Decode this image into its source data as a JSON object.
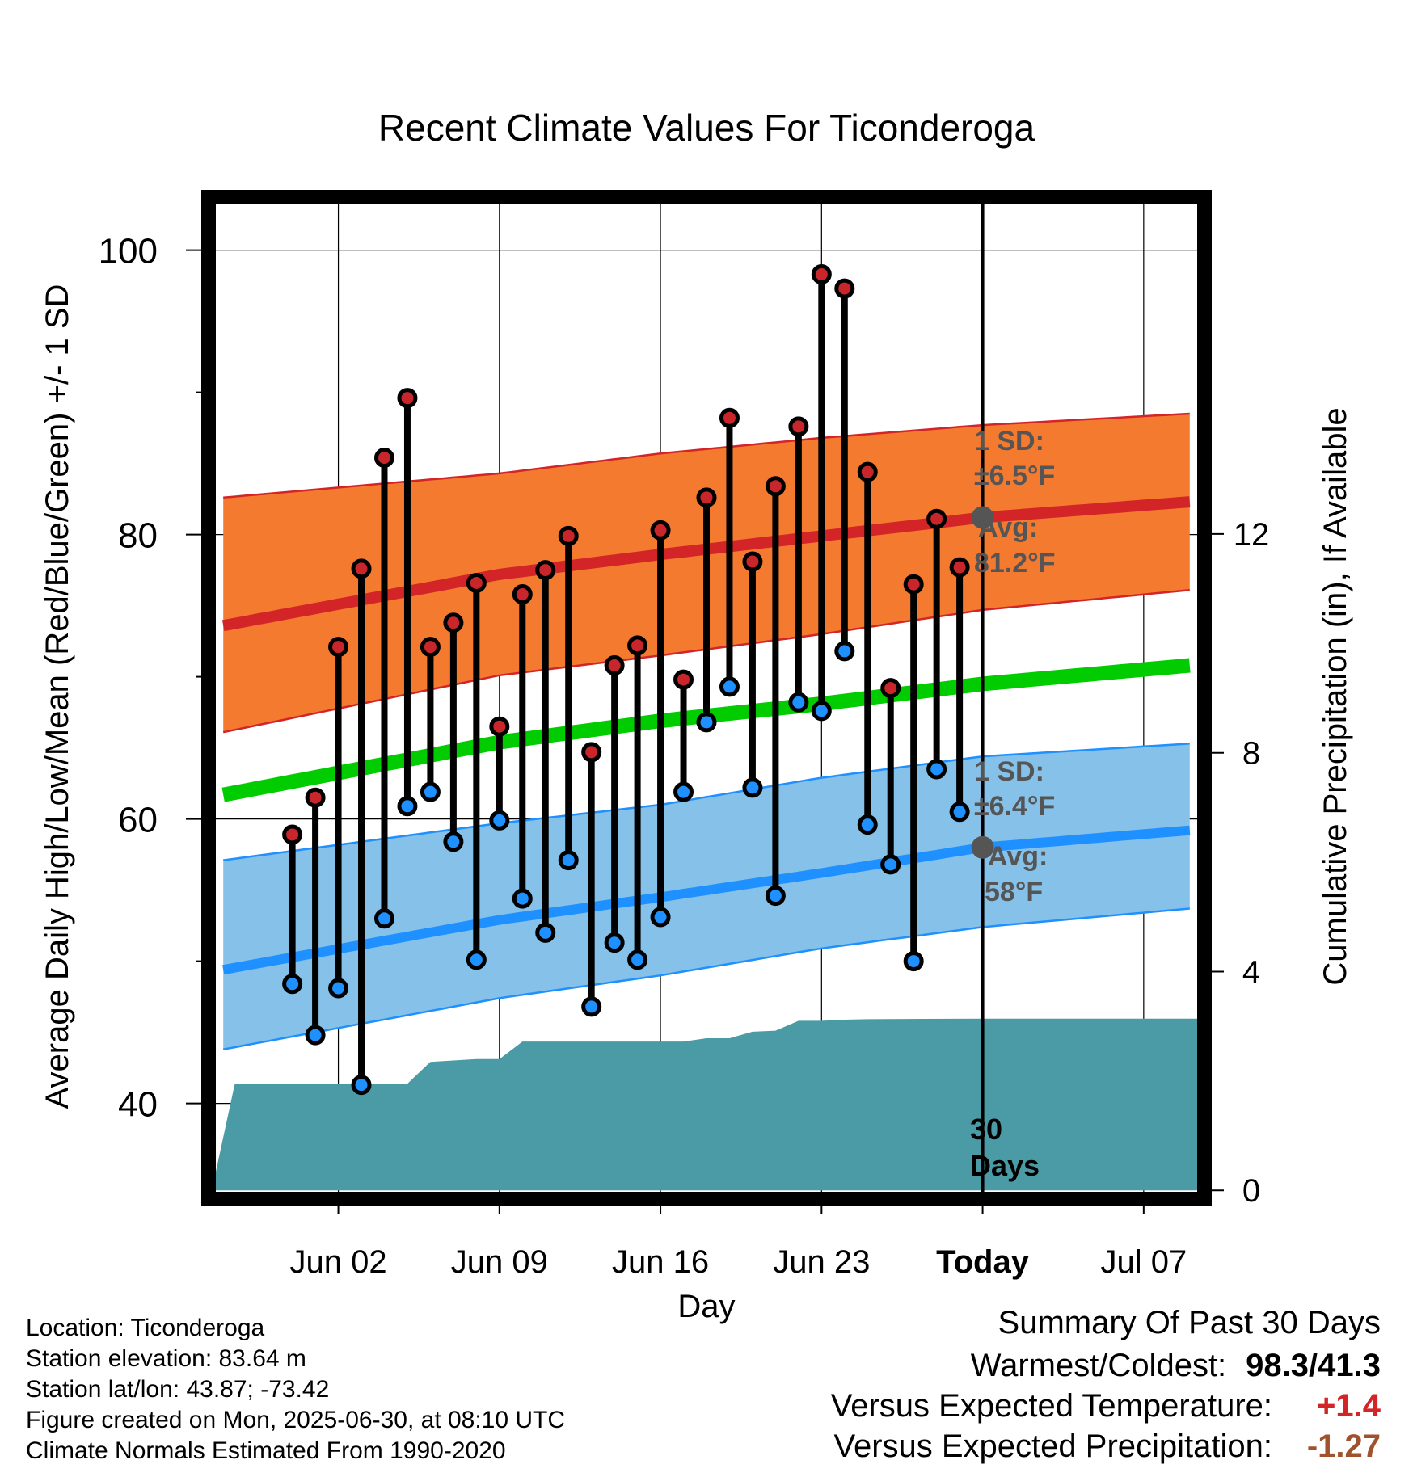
{
  "title": "Recent Climate Values For Ticonderoga",
  "chart_data": {
    "type": "line",
    "title": "Recent Climate Values For Ticonderoga",
    "xlabel": "Day",
    "ylabel": "Average Daily High/Low/Mean (Red/Blue/Green) +/- 1 SD",
    "y2label": "Cumulative Precipitation (in), If Available",
    "ylim": [
      33.5,
      103.5
    ],
    "y2lim": [
      -0.1,
      18.1
    ],
    "xlim_days": [
      -33.5,
      9.5
    ],
    "x_ticks": [
      {
        "day": -28,
        "label": "Jun 02"
      },
      {
        "day": -21,
        "label": "Jun 09"
      },
      {
        "day": -14,
        "label": "Jun 16"
      },
      {
        "day": -7,
        "label": "Jun 23"
      },
      {
        "day": 0,
        "label": "Today"
      },
      {
        "day": 7,
        "label": "Jul 07"
      }
    ],
    "y_ticks": [
      40,
      60,
      80,
      100
    ],
    "y_minor_ticks": [
      50,
      70,
      90
    ],
    "y2_ticks": [
      0,
      4,
      8,
      12
    ],
    "grid": true,
    "normals": {
      "days": [
        -33,
        -21,
        -14,
        -7,
        0,
        9
      ],
      "high_mean": [
        73.6,
        77.2,
        78.6,
        79.9,
        81.2,
        82.3
      ],
      "high_upper": [
        82.6,
        84.3,
        85.7,
        86.8,
        87.7,
        88.5
      ],
      "high_lower": [
        66.1,
        70.1,
        71.5,
        73.0,
        74.7,
        76.1
      ],
      "mean": [
        61.7,
        65.4,
        66.9,
        68.1,
        69.5,
        70.8
      ],
      "low_mean": [
        49.4,
        52.9,
        54.5,
        56.2,
        58.0,
        59.2
      ],
      "low_upper": [
        57.1,
        59.7,
        61.0,
        62.9,
        64.4,
        65.3
      ],
      "low_lower": [
        43.8,
        47.4,
        49.0,
        50.9,
        52.4,
        53.7
      ]
    },
    "series": [
      {
        "name": "High",
        "days": [
          -30,
          -29,
          -28,
          -27,
          -26,
          -25,
          -24,
          -23,
          -22,
          -21,
          -20,
          -19,
          -18,
          -17,
          -16,
          -15,
          -14,
          -13,
          -12,
          -11,
          -10,
          -9,
          -8,
          -7,
          -6,
          -5,
          -4,
          -3,
          -2,
          -1
        ],
        "values": [
          58.9,
          61.5,
          72.1,
          77.6,
          85.4,
          89.6,
          72.1,
          73.8,
          76.6,
          66.5,
          75.8,
          77.5,
          79.9,
          64.7,
          70.8,
          72.2,
          80.3,
          69.8,
          82.6,
          88.2,
          78.1,
          83.4,
          87.6,
          98.3,
          97.3,
          84.4,
          69.2,
          76.5,
          81.1,
          77.7
        ]
      },
      {
        "name": "Low",
        "days": [
          -30,
          -29,
          -28,
          -27,
          -26,
          -25,
          -24,
          -23,
          -22,
          -21,
          -20,
          -19,
          -18,
          -17,
          -16,
          -15,
          -14,
          -13,
          -12,
          -11,
          -10,
          -9,
          -8,
          -7,
          -6,
          -5,
          -4,
          -3,
          -2,
          -1
        ],
        "values": [
          48.4,
          44.8,
          48.1,
          41.3,
          53.0,
          60.9,
          61.9,
          58.4,
          50.1,
          59.9,
          54.4,
          52.0,
          57.1,
          46.8,
          51.3,
          50.1,
          53.1,
          61.9,
          66.8,
          69.3,
          62.2,
          54.6,
          68.2,
          67.6,
          71.8,
          59.6,
          56.8,
          50.0,
          63.5,
          60.5
        ]
      },
      {
        "name": "Cumulative Precipitation",
        "days": [
          -33.5,
          -32.5,
          -25,
          -24,
          -22,
          -21,
          -20,
          -14,
          -13,
          -12,
          -11,
          -10,
          -9,
          -8,
          -7,
          -6,
          -5,
          0,
          9.5
        ],
        "values": [
          0.0,
          1.95,
          1.95,
          2.35,
          2.4,
          2.4,
          2.72,
          2.72,
          2.72,
          2.78,
          2.78,
          2.9,
          2.92,
          3.1,
          3.1,
          3.12,
          3.13,
          3.14,
          3.14
        ]
      }
    ],
    "annotations": {
      "high_sd": "1 SD:",
      "high_sd_val": "±6.5°F",
      "high_avg": "Avg:",
      "high_avg_val": "81.2°F",
      "low_sd": "1 SD:",
      "low_sd_val": "±6.4°F",
      "low_avg": "Avg:",
      "low_avg_val": "58°F",
      "days_num": "30",
      "days_word": "Days",
      "today_high_avg": 81.2,
      "today_low_avg": 58.0
    }
  },
  "footer": {
    "location": "Location: Ticonderoga",
    "elevation": "Station elevation: 83.64 m",
    "latlon": "Station lat/lon: 43.87; -73.42",
    "created": "Figure created on Mon, 2025-06-30, at 08:10 UTC",
    "normals": "Climate Normals Estimated From 1990-2020"
  },
  "summary": {
    "heading": "Summary Of Past 30 Days",
    "warm_cold_label": "Warmest/Coldest:",
    "warm_cold_value": "98.3/41.3",
    "temp_label": "Versus Expected Temperature:",
    "temp_value": "+1.4",
    "precip_label": "Versus Expected Precipitation:",
    "precip_value": "-1.27"
  },
  "colors": {
    "high_band": "#f47a30",
    "high_line": "#d32428",
    "mean_line": "#00cc00",
    "low_band": "#85c1e8",
    "low_line": "#1e90ff",
    "precip_fill": "#4a9ba6",
    "high_dot": "#c8262b",
    "low_dot": "#1e90ff",
    "avg_marker": "#555555",
    "temp_value": "#d32428",
    "precip_value": "#a0522d"
  }
}
